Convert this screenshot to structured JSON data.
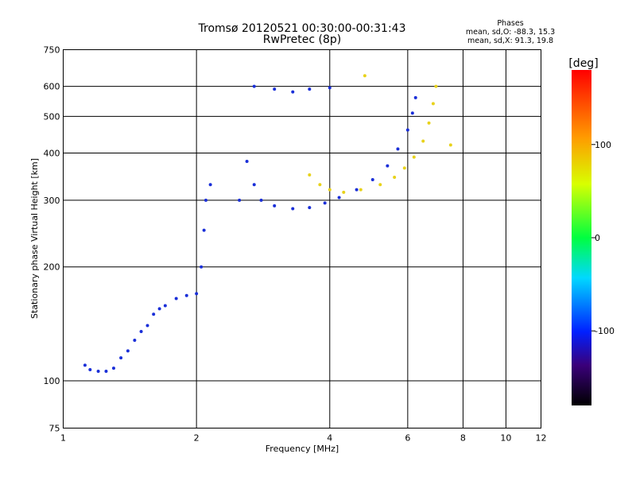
{
  "chart_data": {
    "type": "scatter",
    "title": "Tromsø 20120521 00:30:00-00:31:43",
    "subtitle": "RwPretec (8p)",
    "xlabel": "Frequency [MHz]",
    "ylabel": "Stationary phase Virtual Height [km]",
    "x_scale": "log",
    "y_scale": "log",
    "xlim": [
      1,
      12
    ],
    "ylim": [
      75,
      750
    ],
    "x_ticks": [
      1,
      2,
      4,
      6,
      8,
      10,
      12
    ],
    "y_ticks": [
      75,
      100,
      200,
      300,
      400,
      500,
      600,
      750
    ],
    "grid": true,
    "stats": {
      "title": "Phases",
      "line1": "mean, sd,O: -88.3, 15.3",
      "line2": "mean, sd,X:  91.3, 19.8"
    },
    "colorbar": {
      "label": "[deg]",
      "range": [
        -180,
        180
      ],
      "ticks": [
        100,
        0,
        -100
      ],
      "tick_labels": [
        "100",
        "0",
        "-100"
      ]
    },
    "colors": {
      "o_mode": "#1a2fd8",
      "x_mode": "#e8d21a",
      "background": "#ffffff",
      "grid": "#000000"
    },
    "o_trace": {
      "phase_deg": -90,
      "points": [
        [
          1.12,
          110
        ],
        [
          1.15,
          107
        ],
        [
          1.2,
          106
        ],
        [
          1.25,
          106
        ],
        [
          1.3,
          108
        ],
        [
          1.35,
          115
        ],
        [
          1.4,
          120
        ],
        [
          1.45,
          128
        ],
        [
          1.5,
          135
        ],
        [
          1.55,
          140
        ],
        [
          1.6,
          150
        ],
        [
          1.65,
          155
        ],
        [
          1.7,
          158
        ],
        [
          1.8,
          165
        ],
        [
          1.9,
          168
        ],
        [
          2.0,
          170
        ],
        [
          2.05,
          200
        ],
        [
          2.08,
          250
        ],
        [
          2.1,
          300
        ],
        [
          2.15,
          330
        ],
        [
          2.5,
          300
        ],
        [
          2.6,
          380
        ],
        [
          2.7,
          330
        ],
        [
          2.8,
          300
        ],
        [
          3.0,
          290
        ],
        [
          3.3,
          285
        ],
        [
          3.6,
          287
        ],
        [
          3.9,
          295
        ],
        [
          4.2,
          305
        ],
        [
          4.6,
          320
        ],
        [
          5.0,
          340
        ],
        [
          5.4,
          370
        ],
        [
          5.7,
          410
        ],
        [
          6.0,
          460
        ],
        [
          6.15,
          510
        ],
        [
          6.25,
          560
        ],
        [
          2.7,
          600
        ],
        [
          3.0,
          590
        ],
        [
          3.3,
          580
        ],
        [
          3.6,
          590
        ],
        [
          4.0,
          595
        ]
      ]
    },
    "x_trace": {
      "phase_deg": 95,
      "points": [
        [
          3.6,
          350
        ],
        [
          3.8,
          330
        ],
        [
          4.0,
          320
        ],
        [
          4.3,
          315
        ],
        [
          4.7,
          320
        ],
        [
          5.2,
          330
        ],
        [
          5.6,
          345
        ],
        [
          5.9,
          365
        ],
        [
          6.2,
          390
        ],
        [
          6.5,
          430
        ],
        [
          6.7,
          480
        ],
        [
          6.85,
          540
        ],
        [
          6.95,
          600
        ],
        [
          4.8,
          640
        ],
        [
          7.5,
          420
        ]
      ]
    },
    "legend": []
  }
}
